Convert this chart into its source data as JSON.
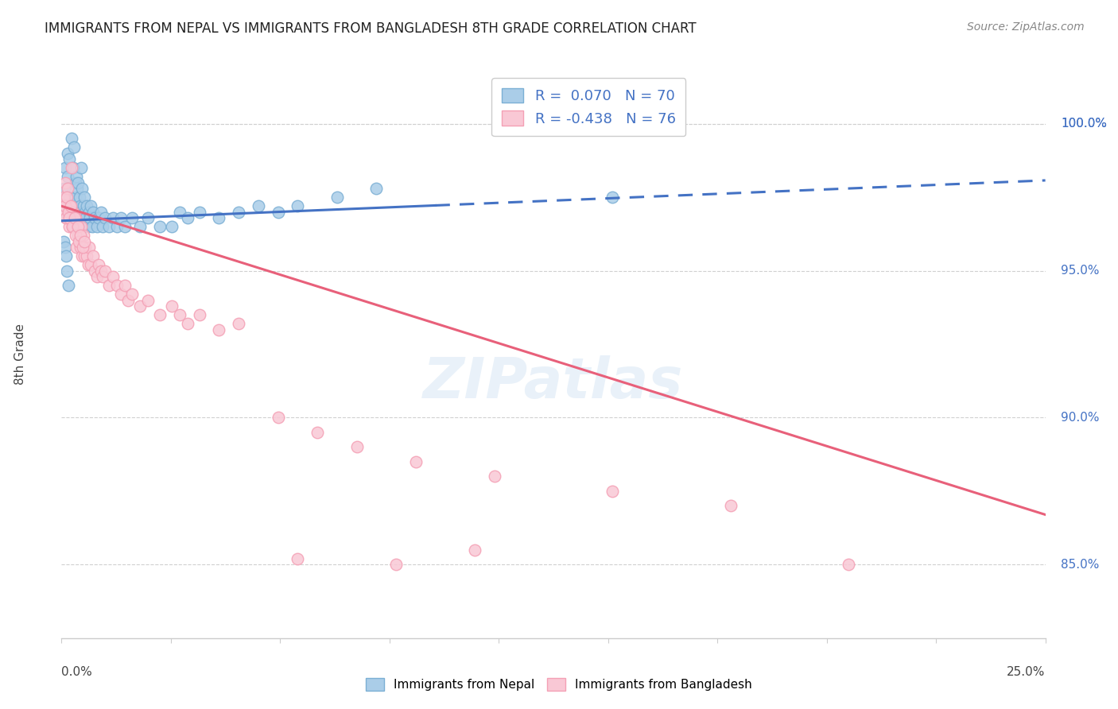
{
  "title": "IMMIGRANTS FROM NEPAL VS IMMIGRANTS FROM BANGLADESH 8TH GRADE CORRELATION CHART",
  "source": "Source: ZipAtlas.com",
  "ylabel": "8th Grade",
  "xmin": 0.0,
  "xmax": 25.0,
  "ymin": 82.5,
  "ymax": 101.8,
  "yticks": [
    85.0,
    90.0,
    95.0,
    100.0
  ],
  "ytick_labels": [
    "85.0%",
    "90.0%",
    "95.0%",
    "100.0%"
  ],
  "nepal_R": 0.07,
  "nepal_N": 70,
  "bangladesh_R": -0.438,
  "bangladesh_N": 76,
  "nepal_color": "#7bafd4",
  "nepal_color_fill": "#aacde8",
  "bangladesh_color": "#f4a0b5",
  "bangladesh_color_fill": "#f9c8d5",
  "trend_nepal_color": "#4472c4",
  "trend_bangladesh_color": "#e8607a",
  "watermark": "ZIPatlas",
  "nepal_trend_slope": 0.055,
  "nepal_trend_intercept": 96.7,
  "nepal_trend_solid_end": 9.5,
  "bangladesh_trend_slope": -0.42,
  "bangladesh_trend_intercept": 97.2,
  "nepal_x": [
    0.05,
    0.08,
    0.1,
    0.12,
    0.15,
    0.15,
    0.18,
    0.2,
    0.22,
    0.25,
    0.28,
    0.3,
    0.3,
    0.32,
    0.35,
    0.35,
    0.38,
    0.4,
    0.4,
    0.42,
    0.45,
    0.45,
    0.48,
    0.5,
    0.5,
    0.52,
    0.55,
    0.55,
    0.58,
    0.6,
    0.62,
    0.65,
    0.68,
    0.7,
    0.72,
    0.75,
    0.78,
    0.8,
    0.85,
    0.9,
    0.95,
    1.0,
    1.05,
    1.1,
    1.2,
    1.3,
    1.4,
    1.5,
    1.6,
    1.8,
    2.0,
    2.2,
    2.5,
    2.8,
    3.0,
    3.2,
    3.5,
    4.0,
    4.5,
    5.0,
    5.5,
    6.0,
    7.0,
    8.0,
    14.0,
    0.06,
    0.09,
    0.11,
    0.14,
    0.17
  ],
  "nepal_y": [
    97.2,
    97.8,
    98.5,
    97.5,
    99.0,
    98.2,
    97.0,
    98.8,
    97.5,
    99.5,
    97.2,
    98.5,
    96.8,
    99.2,
    98.0,
    97.5,
    98.2,
    97.8,
    96.5,
    98.0,
    97.5,
    96.8,
    97.2,
    98.5,
    97.0,
    97.8,
    97.2,
    96.5,
    97.5,
    97.0,
    96.8,
    97.2,
    96.5,
    97.0,
    96.8,
    97.2,
    96.5,
    97.0,
    96.8,
    96.5,
    96.8,
    97.0,
    96.5,
    96.8,
    96.5,
    96.8,
    96.5,
    96.8,
    96.5,
    96.8,
    96.5,
    96.8,
    96.5,
    96.5,
    97.0,
    96.8,
    97.0,
    96.8,
    97.0,
    97.2,
    97.0,
    97.2,
    97.5,
    97.8,
    97.5,
    96.0,
    95.8,
    95.5,
    95.0,
    94.5
  ],
  "bangladesh_x": [
    0.05,
    0.08,
    0.1,
    0.12,
    0.15,
    0.18,
    0.2,
    0.22,
    0.25,
    0.28,
    0.3,
    0.32,
    0.35,
    0.38,
    0.4,
    0.42,
    0.45,
    0.48,
    0.5,
    0.52,
    0.55,
    0.58,
    0.6,
    0.65,
    0.68,
    0.7,
    0.75,
    0.8,
    0.85,
    0.9,
    0.95,
    1.0,
    1.05,
    1.1,
    1.2,
    1.3,
    1.4,
    1.5,
    1.6,
    1.7,
    1.8,
    2.0,
    2.2,
    2.5,
    2.8,
    3.0,
    3.2,
    3.5,
    4.0,
    4.5,
    0.06,
    0.09,
    0.11,
    0.14,
    0.17,
    0.19,
    0.23,
    0.27,
    0.33,
    0.36,
    0.41,
    0.44,
    0.47,
    0.53,
    0.57,
    5.5,
    6.5,
    7.5,
    9.0,
    11.0,
    14.0,
    17.0,
    20.0,
    10.5,
    8.5,
    6.0
  ],
  "bangladesh_y": [
    97.5,
    97.2,
    98.0,
    96.8,
    97.8,
    97.0,
    96.5,
    97.2,
    98.5,
    96.5,
    97.0,
    96.5,
    96.8,
    95.8,
    96.5,
    96.2,
    96.0,
    95.8,
    96.5,
    95.5,
    96.2,
    95.5,
    95.8,
    95.5,
    95.2,
    95.8,
    95.2,
    95.5,
    95.0,
    94.8,
    95.2,
    95.0,
    94.8,
    95.0,
    94.5,
    94.8,
    94.5,
    94.2,
    94.5,
    94.0,
    94.2,
    93.8,
    94.0,
    93.5,
    93.8,
    93.5,
    93.2,
    93.5,
    93.0,
    93.2,
    97.0,
    97.2,
    96.8,
    97.5,
    97.0,
    96.8,
    97.2,
    96.5,
    96.8,
    96.2,
    96.5,
    96.0,
    96.2,
    95.8,
    96.0,
    90.0,
    89.5,
    89.0,
    88.5,
    88.0,
    87.5,
    87.0,
    85.0,
    85.5,
    85.0,
    85.2
  ]
}
